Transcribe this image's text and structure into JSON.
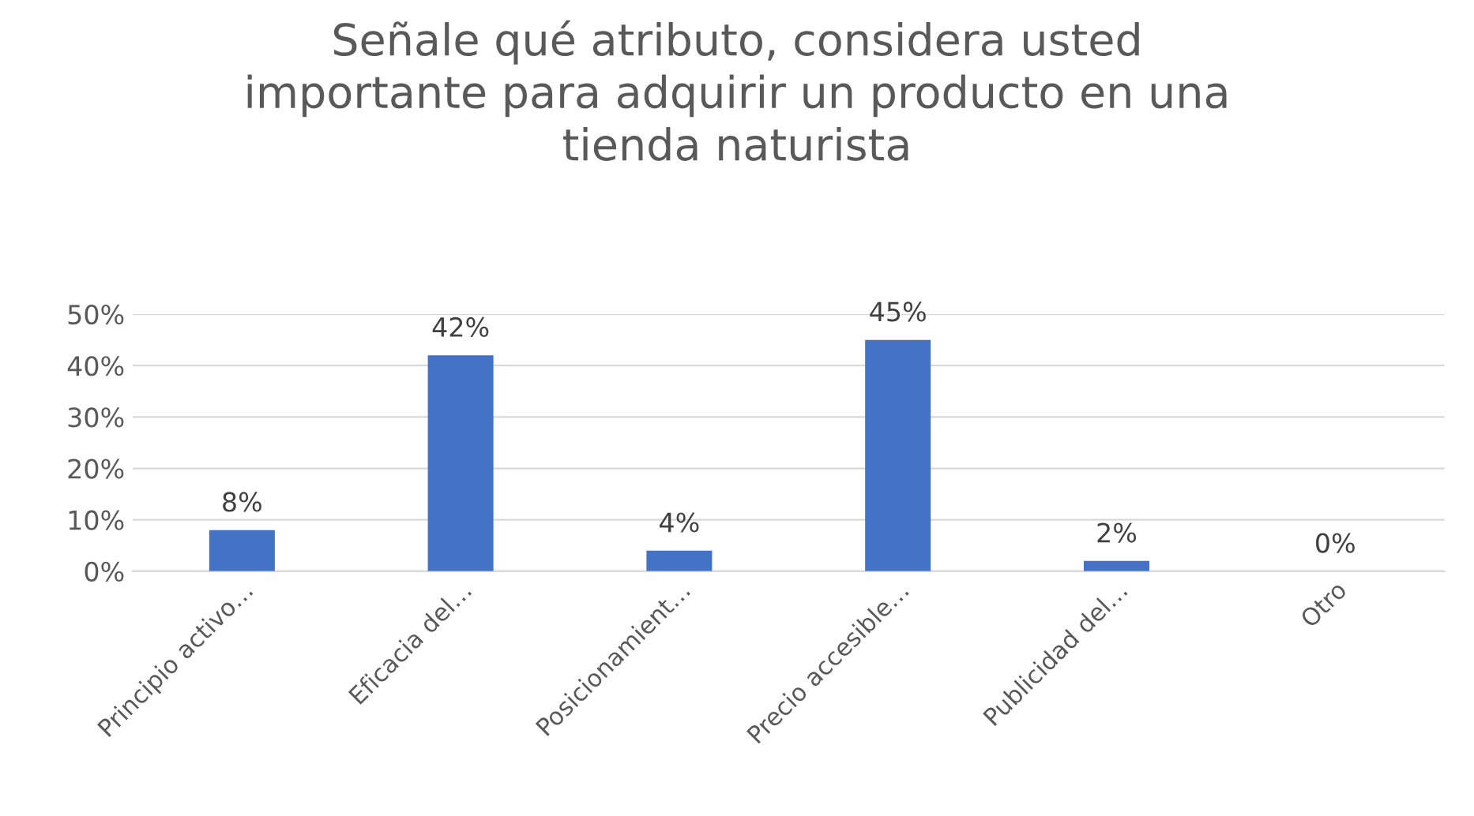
{
  "chart_data": {
    "type": "bar",
    "title": "Señale qué atributo, considera usted\nimportante para adquirir un producto en una\ntienda naturista",
    "categories": [
      "Principio activo…",
      "Eficacia del…",
      "Posicionamient…",
      "Precio accesible…",
      "Publicidad del…",
      "Otro"
    ],
    "values": [
      8,
      42,
      4,
      45,
      2,
      0
    ],
    "value_labels": [
      "8%",
      "42%",
      "4%",
      "45%",
      "2%",
      "0%"
    ],
    "color": "#4472c4",
    "ylim": [
      0,
      50
    ],
    "yticks": [
      {
        "value": 0,
        "label": "0%"
      },
      {
        "value": 10,
        "label": "10%"
      },
      {
        "value": 20,
        "label": "20%"
      },
      {
        "value": 30,
        "label": "30%"
      },
      {
        "value": 40,
        "label": "40%"
      },
      {
        "value": 50,
        "label": "50%"
      }
    ],
    "grid": "y",
    "legend": false
  }
}
